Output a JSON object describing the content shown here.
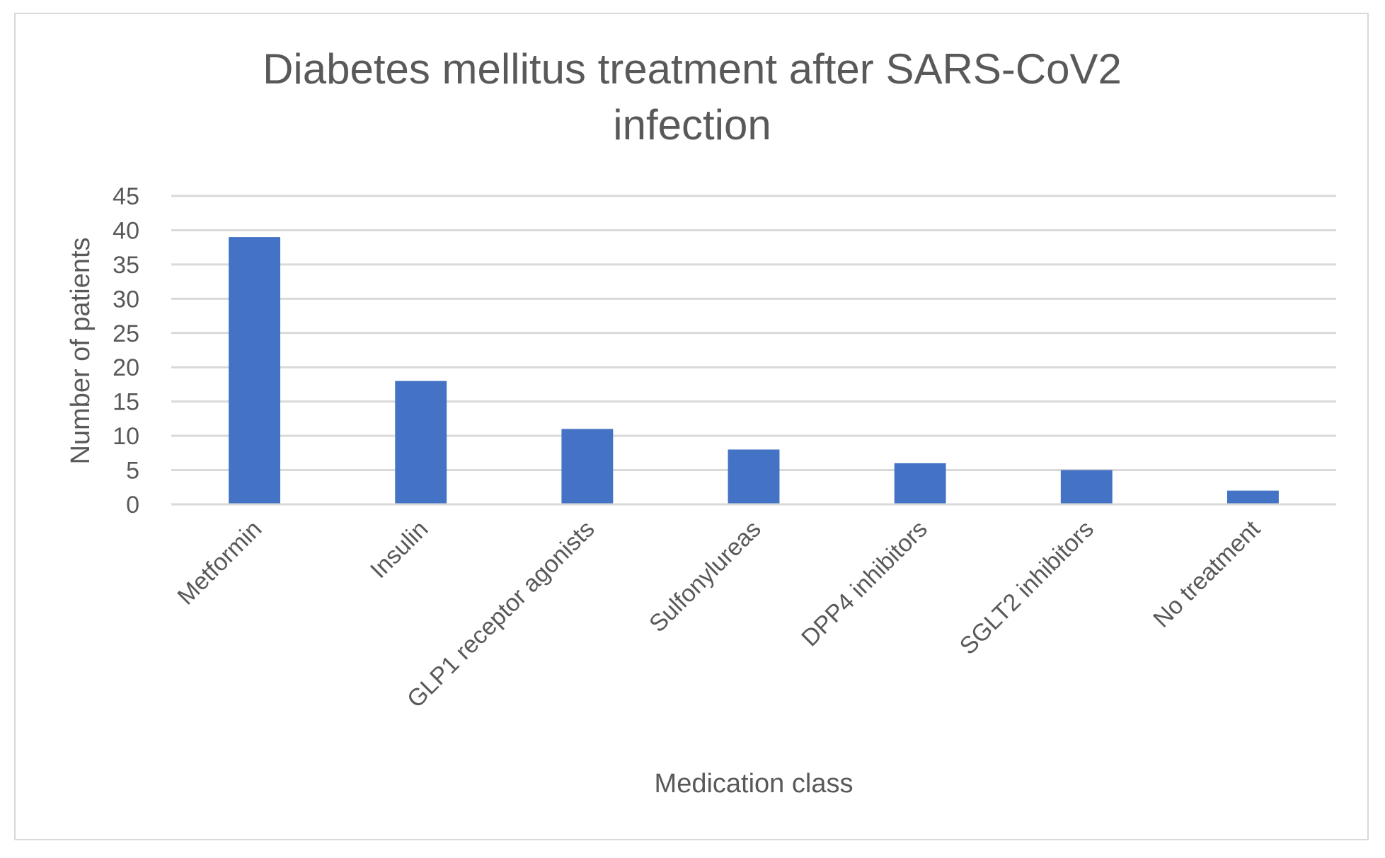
{
  "chart_data": {
    "type": "bar",
    "title_lines": [
      "Diabetes mellitus treatment after SARS-CoV2",
      "infection"
    ],
    "categories": [
      "Metformin",
      "Insulin",
      "GLP1 receptor agonists",
      "Sulfonylureas",
      "DPP4 inhibitors",
      "SGLT2 inhibitors",
      "No treatment"
    ],
    "values": [
      39,
      18,
      11,
      8,
      6,
      5,
      2
    ],
    "xlabel": "Medication class",
    "ylabel": "Number of patients",
    "ylim": [
      0,
      45
    ],
    "yticks": [
      0,
      5,
      10,
      15,
      20,
      25,
      30,
      35,
      40,
      45
    ],
    "grid": true,
    "bar_color": "#4472C4",
    "grid_color": "#d9d9d9"
  }
}
